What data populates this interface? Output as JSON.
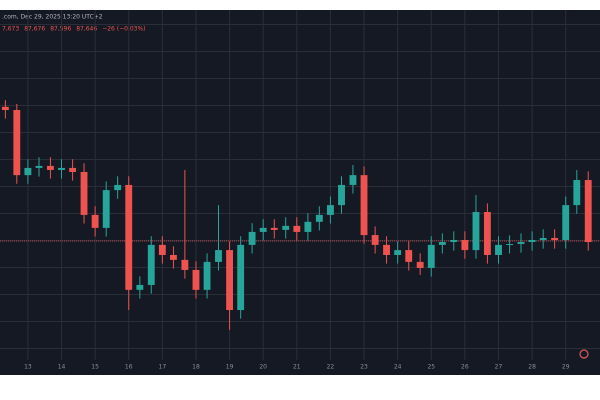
{
  "header": {
    "source": ".com, Dec 29, 2025 13:20 UTC+2",
    "ohlc": [
      "7,673",
      "87,676",
      "87,596",
      "87,646",
      "−26 (−0.03%)"
    ]
  },
  "chart_data": {
    "type": "candlestick",
    "x": [
      12.33,
      12.67,
      13,
      13.33,
      13.67,
      14,
      14.33,
      14.67,
      15,
      15.33,
      15.67,
      16,
      16.33,
      16.67,
      17,
      17.33,
      17.67,
      18,
      18.33,
      18.67,
      19,
      19.33,
      19.67,
      20,
      20.33,
      20.67,
      21,
      21.33,
      21.67,
      22,
      22.33,
      22.67,
      23,
      23.33,
      23.67,
      24,
      24.33,
      24.67,
      25,
      25.33,
      25.67,
      26,
      26.33,
      26.67,
      27,
      27.33,
      27.67,
      28,
      28.33,
      28.67,
      29,
      29.33,
      29.67
    ],
    "open": [
      92300,
      92190,
      89930,
      90180,
      90250,
      90110,
      90180,
      90040,
      88550,
      88100,
      89410,
      89590,
      85950,
      86120,
      87510,
      87160,
      86990,
      86640,
      85950,
      86920,
      87330,
      85250,
      87510,
      87960,
      88100,
      88030,
      88170,
      87960,
      88310,
      88550,
      88890,
      89590,
      89930,
      87850,
      87510,
      87160,
      87330,
      86920,
      86710,
      87510,
      87610,
      87680,
      87330,
      88650,
      87160,
      87510,
      87540,
      87610,
      87680,
      87750,
      87680,
      88890,
      89760
    ],
    "high": [
      92530,
      92400,
      90480,
      90550,
      90550,
      90480,
      90480,
      90340,
      88850,
      89710,
      89890,
      89890,
      86420,
      87810,
      87810,
      87460,
      90110,
      86940,
      87220,
      88890,
      87630,
      87810,
      88260,
      88400,
      88400,
      88470,
      88470,
      88610,
      88850,
      89190,
      89890,
      90280,
      90230,
      88150,
      87810,
      87630,
      87630,
      87220,
      87810,
      87910,
      87980,
      87980,
      89240,
      88950,
      87810,
      87840,
      87910,
      87980,
      88050,
      88050,
      89190,
      90110,
      90060
    ],
    "low": [
      91890,
      89630,
      89630,
      89880,
      89810,
      89810,
      89740,
      88250,
      87800,
      87800,
      89110,
      85250,
      85650,
      85820,
      86860,
      86690,
      86340,
      85650,
      85650,
      86620,
      84560,
      84950,
      87210,
      87660,
      87730,
      87730,
      87660,
      87660,
      88010,
      88250,
      88590,
      89290,
      87550,
      87210,
      86860,
      86860,
      86620,
      86470,
      86410,
      87210,
      87310,
      87030,
      87030,
      86860,
      86860,
      87210,
      87240,
      87310,
      87380,
      87380,
      87380,
      88590,
      87310
    ],
    "close": [
      92190,
      89930,
      90180,
      90250,
      90110,
      90180,
      90040,
      88550,
      88100,
      89410,
      89590,
      85950,
      86120,
      87510,
      87160,
      86990,
      86640,
      85950,
      86920,
      87330,
      85250,
      87510,
      87960,
      88100,
      88030,
      88170,
      87960,
      88310,
      88550,
      88890,
      89590,
      89930,
      87850,
      87510,
      87160,
      87330,
      86920,
      86710,
      87510,
      87610,
      87680,
      87330,
      88650,
      87160,
      87510,
      87540,
      87610,
      87680,
      87750,
      87680,
      88890,
      89760,
      87610
    ],
    "up_color": "#26a69a",
    "down_color": "#ef5350",
    "last_price": 87646,
    "last_price_color": "#ef5350",
    "xlim": [
      12.17,
      30.02
    ],
    "xticks": [
      13,
      14,
      15,
      16,
      17,
      18,
      19,
      20,
      21,
      22,
      23,
      24,
      25,
      26,
      27,
      28,
      29
    ],
    "ylim": [
      83100,
      95590
    ],
    "grid": true
  }
}
